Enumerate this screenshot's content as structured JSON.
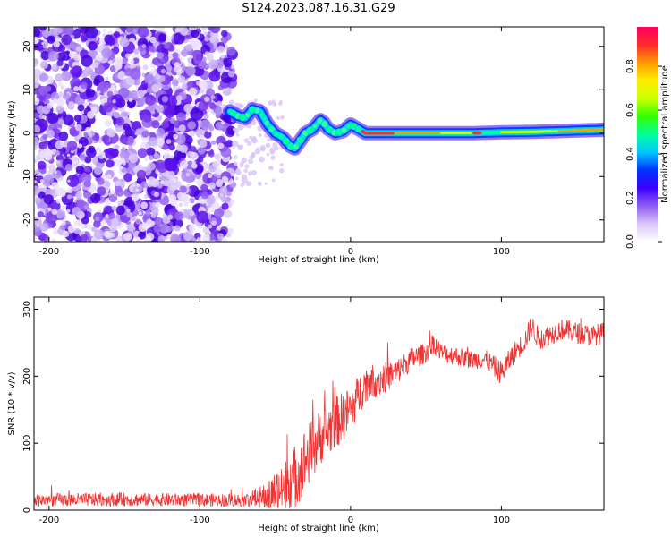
{
  "title": "S124.2023.087.16.31.G29",
  "chart_data": [
    {
      "type": "heatmap",
      "xlabel": "Height of straight line (km)",
      "ylabel": "Frequency (Hz)",
      "xlim": [
        -210,
        168
      ],
      "ylim": [
        -25,
        24.5
      ],
      "xticks": [
        "-200",
        "-100",
        "0",
        "100"
      ],
      "yticks": [
        "-20",
        "-10",
        "0",
        "10",
        "20"
      ],
      "colorbar": {
        "label": "Normalized spectral amplitude",
        "range": [
          0,
          0.98
        ],
        "ticks": [
          "0.0",
          "0.2",
          "0.4",
          "0.6",
          "0.8"
        ],
        "colors": [
          "#ffffff",
          "#d9c6f7",
          "#8f5cf0",
          "#3b00ff",
          "#0033ff",
          "#00c8ff",
          "#00ff9c",
          "#33ff00",
          "#ccff00",
          "#ffee00",
          "#ff9a00",
          "#ff2a2a",
          "#ff0060"
        ]
      },
      "ridge": {
        "x": [
          -80,
          -75,
          -70,
          -65,
          -60,
          -55,
          -50,
          -45,
          -40,
          -37,
          -33,
          -30,
          -25,
          -20,
          -18,
          -15,
          -10,
          -5,
          0,
          5,
          10,
          20,
          40,
          60,
          80,
          100,
          120,
          140,
          168
        ],
        "y": [
          5,
          4,
          3.5,
          5.5,
          5,
          2,
          0,
          -1,
          -3,
          -3.5,
          -1.5,
          0,
          1,
          3,
          2.5,
          1,
          0,
          0.5,
          2,
          1,
          0,
          0,
          0,
          0,
          0,
          0.2,
          0.3,
          0.5,
          0.8
        ]
      }
    },
    {
      "type": "line",
      "xlabel": "Height of straight line (km)",
      "ylabel": "SNR (10 * v/v)",
      "xlim": [
        -210,
        168
      ],
      "ylim": [
        0,
        318
      ],
      "xticks": [
        "-200",
        "-100",
        "0",
        "100"
      ],
      "yticks": [
        "0",
        "100",
        "200",
        "300"
      ],
      "color": "#ee3333",
      "trend": {
        "x": [
          -210,
          -150,
          -100,
          -70,
          -55,
          -40,
          -30,
          -20,
          -10,
          0,
          10,
          20,
          30,
          40,
          50,
          55,
          60,
          70,
          80,
          90,
          100,
          110,
          115,
          120,
          125,
          130,
          140,
          150,
          160,
          168
        ],
        "y": [
          15,
          16,
          15,
          15,
          20,
          40,
          75,
          110,
          130,
          150,
          190,
          195,
          205,
          225,
          235,
          250,
          235,
          230,
          225,
          225,
          205,
          240,
          250,
          275,
          255,
          260,
          270,
          265,
          260,
          265
        ]
      },
      "noise_amplitude": [
        10,
        10,
        10,
        10,
        22,
        48,
        50,
        42,
        40,
        35,
        28,
        25,
        20,
        18,
        15,
        16,
        15,
        14,
        14,
        14,
        18,
        16,
        16,
        18,
        16,
        16,
        16,
        16,
        16,
        16
      ]
    }
  ]
}
